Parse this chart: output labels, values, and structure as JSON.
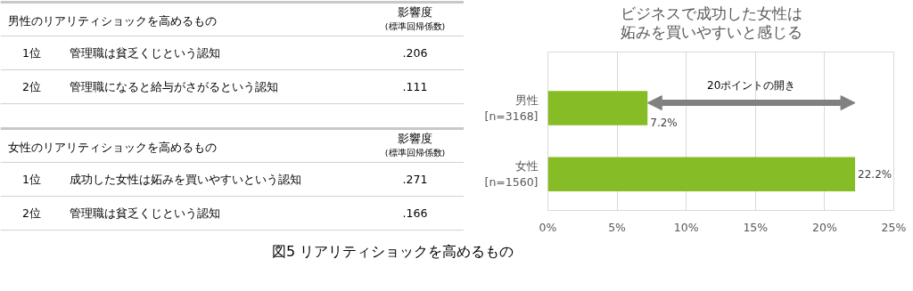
{
  "chart_data": [
    {
      "type": "other",
      "title": "男性のリアリティショックを高めるもの",
      "categories": [
        "管理職は貧乏くじという認知",
        "管理職になると給与がさがるという認知"
      ],
      "values": [
        0.206,
        0.111
      ],
      "value_labels": [
        ".206",
        ".111"
      ],
      "annotations": [
        "影響度",
        "(標準回帰係数)",
        "1位",
        "2位"
      ]
    },
    {
      "type": "other",
      "title": "女性のリアリティショックを高めるもの",
      "categories": [
        "成功した女性は妬みを買いやすいという認知",
        "管理職は貧乏くじという認知"
      ],
      "values": [
        0.271,
        0.166
      ],
      "value_labels": [
        ".271",
        ".166"
      ],
      "annotations": [
        "影響度",
        "(標準回帰係数)",
        "1位",
        "2位"
      ]
    },
    {
      "type": "bar",
      "orientation": "horizontal",
      "title": "ビジネスで成功した女性は妬みを買いやすいと感じる",
      "categories": [
        "男性\n[n=3168]",
        "女性\n[n=1560]"
      ],
      "values": [
        7.2,
        22.2
      ],
      "value_labels": [
        "7.2%",
        "22.2%"
      ],
      "color": "#86bc25",
      "xlim": [
        0,
        25
      ],
      "xticks": [
        {
          "value": 0,
          "label": "0%"
        },
        {
          "value": 5,
          "label": "5%"
        },
        {
          "value": 10,
          "label": "10%"
        },
        {
          "value": 15,
          "label": "15%"
        },
        {
          "value": 20,
          "label": "20%"
        },
        {
          "value": 25,
          "label": "25%"
        }
      ],
      "grid": "x",
      "legend": false,
      "annotations": [
        "20ポイントの開き",
        "図5 リアリティショックを高めるもの"
      ]
    }
  ]
}
